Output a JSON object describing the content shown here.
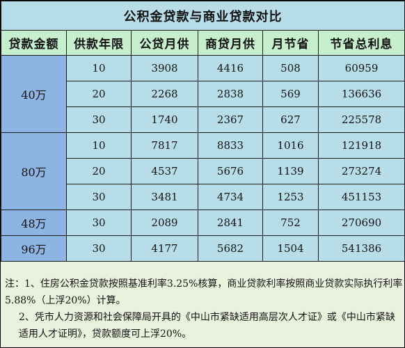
{
  "title": "公积金贷款与商业贷款对比",
  "headers": [
    "贷款金额",
    "供款年限",
    "公贷月供",
    "商贷月供",
    "月节省",
    "节省总利息"
  ],
  "groups": [
    {
      "amount": "40万",
      "rows": [
        {
          "years": "10",
          "gjj": "3908",
          "biz": "4416",
          "save": "508",
          "total": "60959"
        },
        {
          "years": "20",
          "gjj": "2268",
          "biz": "2838",
          "save": "569",
          "total": "136636"
        },
        {
          "years": "30",
          "gjj": "1740",
          "biz": "2367",
          "save": "627",
          "total": "225578"
        }
      ]
    },
    {
      "amount": "80万",
      "rows": [
        {
          "years": "10",
          "gjj": "7817",
          "biz": "8833",
          "save": "1016",
          "total": "121918"
        },
        {
          "years": "20",
          "gjj": "4537",
          "biz": "5676",
          "save": "1139",
          "total": "273274"
        },
        {
          "years": "30",
          "gjj": "3481",
          "biz": "4734",
          "save": "1253",
          "total": "451153"
        }
      ]
    },
    {
      "amount": "48万",
      "rows": [
        {
          "years": "30",
          "gjj": "2089",
          "biz": "2841",
          "save": "752",
          "total": "270690"
        }
      ]
    },
    {
      "amount": "96万",
      "rows": [
        {
          "years": "30",
          "gjj": "4177",
          "biz": "5682",
          "save": "1504",
          "total": "541386"
        }
      ]
    }
  ],
  "notes": {
    "note1": "注：1、住房公积金贷款按照基准利率3.25%核算，商业贷款利率按照商业贷款实际执行利率5.88%（上浮20%）计算。",
    "note2": "2、凭市人力资源和社会保障局开具的《中山市紧缺适用高层次人才证》或《中山市紧缺适用人才证明》，贷款额度可上浮20%。"
  }
}
